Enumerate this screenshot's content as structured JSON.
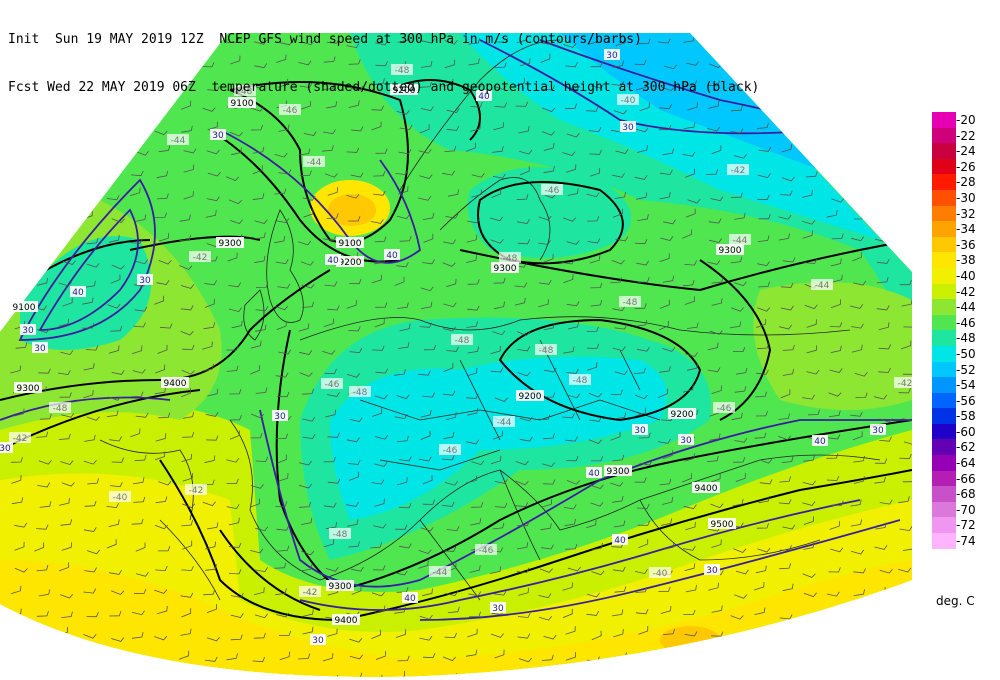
{
  "header": {
    "line1": "Init  Sun 19 MAY 2019 12Z  NCEP GFS wind speed at 300 hPa in m/s (contours/barbs)",
    "line2": "Fcst Wed 22 MAY 2019 06Z  temperature (shaded/dotted) and geopotential height at 300 hPa (black)"
  },
  "colorbar": {
    "units": "deg. C",
    "entries": [
      {
        "label": "-20",
        "color": "#e600b4"
      },
      {
        "label": "-22",
        "color": "#d0007a"
      },
      {
        "label": "-24",
        "color": "#c80040"
      },
      {
        "label": "-26",
        "color": "#e00018"
      },
      {
        "label": "-28",
        "color": "#ff1a00"
      },
      {
        "label": "-30",
        "color": "#ff5000"
      },
      {
        "label": "-32",
        "color": "#ff7d00"
      },
      {
        "label": "-34",
        "color": "#ffa300"
      },
      {
        "label": "-36",
        "color": "#ffc800"
      },
      {
        "label": "-38",
        "color": "#ffe600"
      },
      {
        "label": "-40",
        "color": "#f0f000"
      },
      {
        "label": "-42",
        "color": "#c8f000"
      },
      {
        "label": "-44",
        "color": "#8ce632"
      },
      {
        "label": "-46",
        "color": "#50e650"
      },
      {
        "label": "-48",
        "color": "#1ee6a0"
      },
      {
        "label": "-50",
        "color": "#00e6e6"
      },
      {
        "label": "-52",
        "color": "#00c8ff"
      },
      {
        "label": "-54",
        "color": "#0096ff"
      },
      {
        "label": "-56",
        "color": "#0064ff"
      },
      {
        "label": "-58",
        "color": "#0032e6"
      },
      {
        "label": "-60",
        "color": "#1e00c8"
      },
      {
        "label": "-62",
        "color": "#6400b4"
      },
      {
        "label": "-64",
        "color": "#9600b4"
      },
      {
        "label": "-66",
        "color": "#b41eb4"
      },
      {
        "label": "-68",
        "color": "#c850c8"
      },
      {
        "label": "-70",
        "color": "#dc78dc"
      },
      {
        "label": "-72",
        "color": "#f096f0"
      },
      {
        "label": "-74",
        "color": "#ffb4ff"
      }
    ]
  },
  "map": {
    "height_labels": [
      "9100",
      "9200",
      "9100",
      "9200",
      "9300",
      "9100",
      "9300",
      "9400",
      "9300",
      "9300",
      "9200",
      "9200",
      "9300",
      "9400",
      "9500",
      "9300",
      "9400"
    ],
    "wind_labels": [
      "30",
      "30",
      "40",
      "30",
      "40",
      "30",
      "30",
      "30",
      "30",
      "40",
      "30",
      "30",
      "40",
      "40",
      "40",
      "30",
      "30",
      "40",
      "30",
      "40",
      "30",
      "30"
    ],
    "temp_labels": [
      "-48",
      "-46",
      "-48",
      "-44",
      "-44",
      "-44",
      "-46",
      "-48",
      "-48",
      "-44",
      "-42",
      "-48",
      "-48",
      "-42",
      "-46",
      "-48",
      "-48",
      "-48",
      "-46",
      "-44",
      "-42",
      "-40",
      "-42",
      "-40",
      "-42",
      "-46",
      "-46",
      "-48",
      "-44",
      "-42",
      "-40"
    ]
  }
}
